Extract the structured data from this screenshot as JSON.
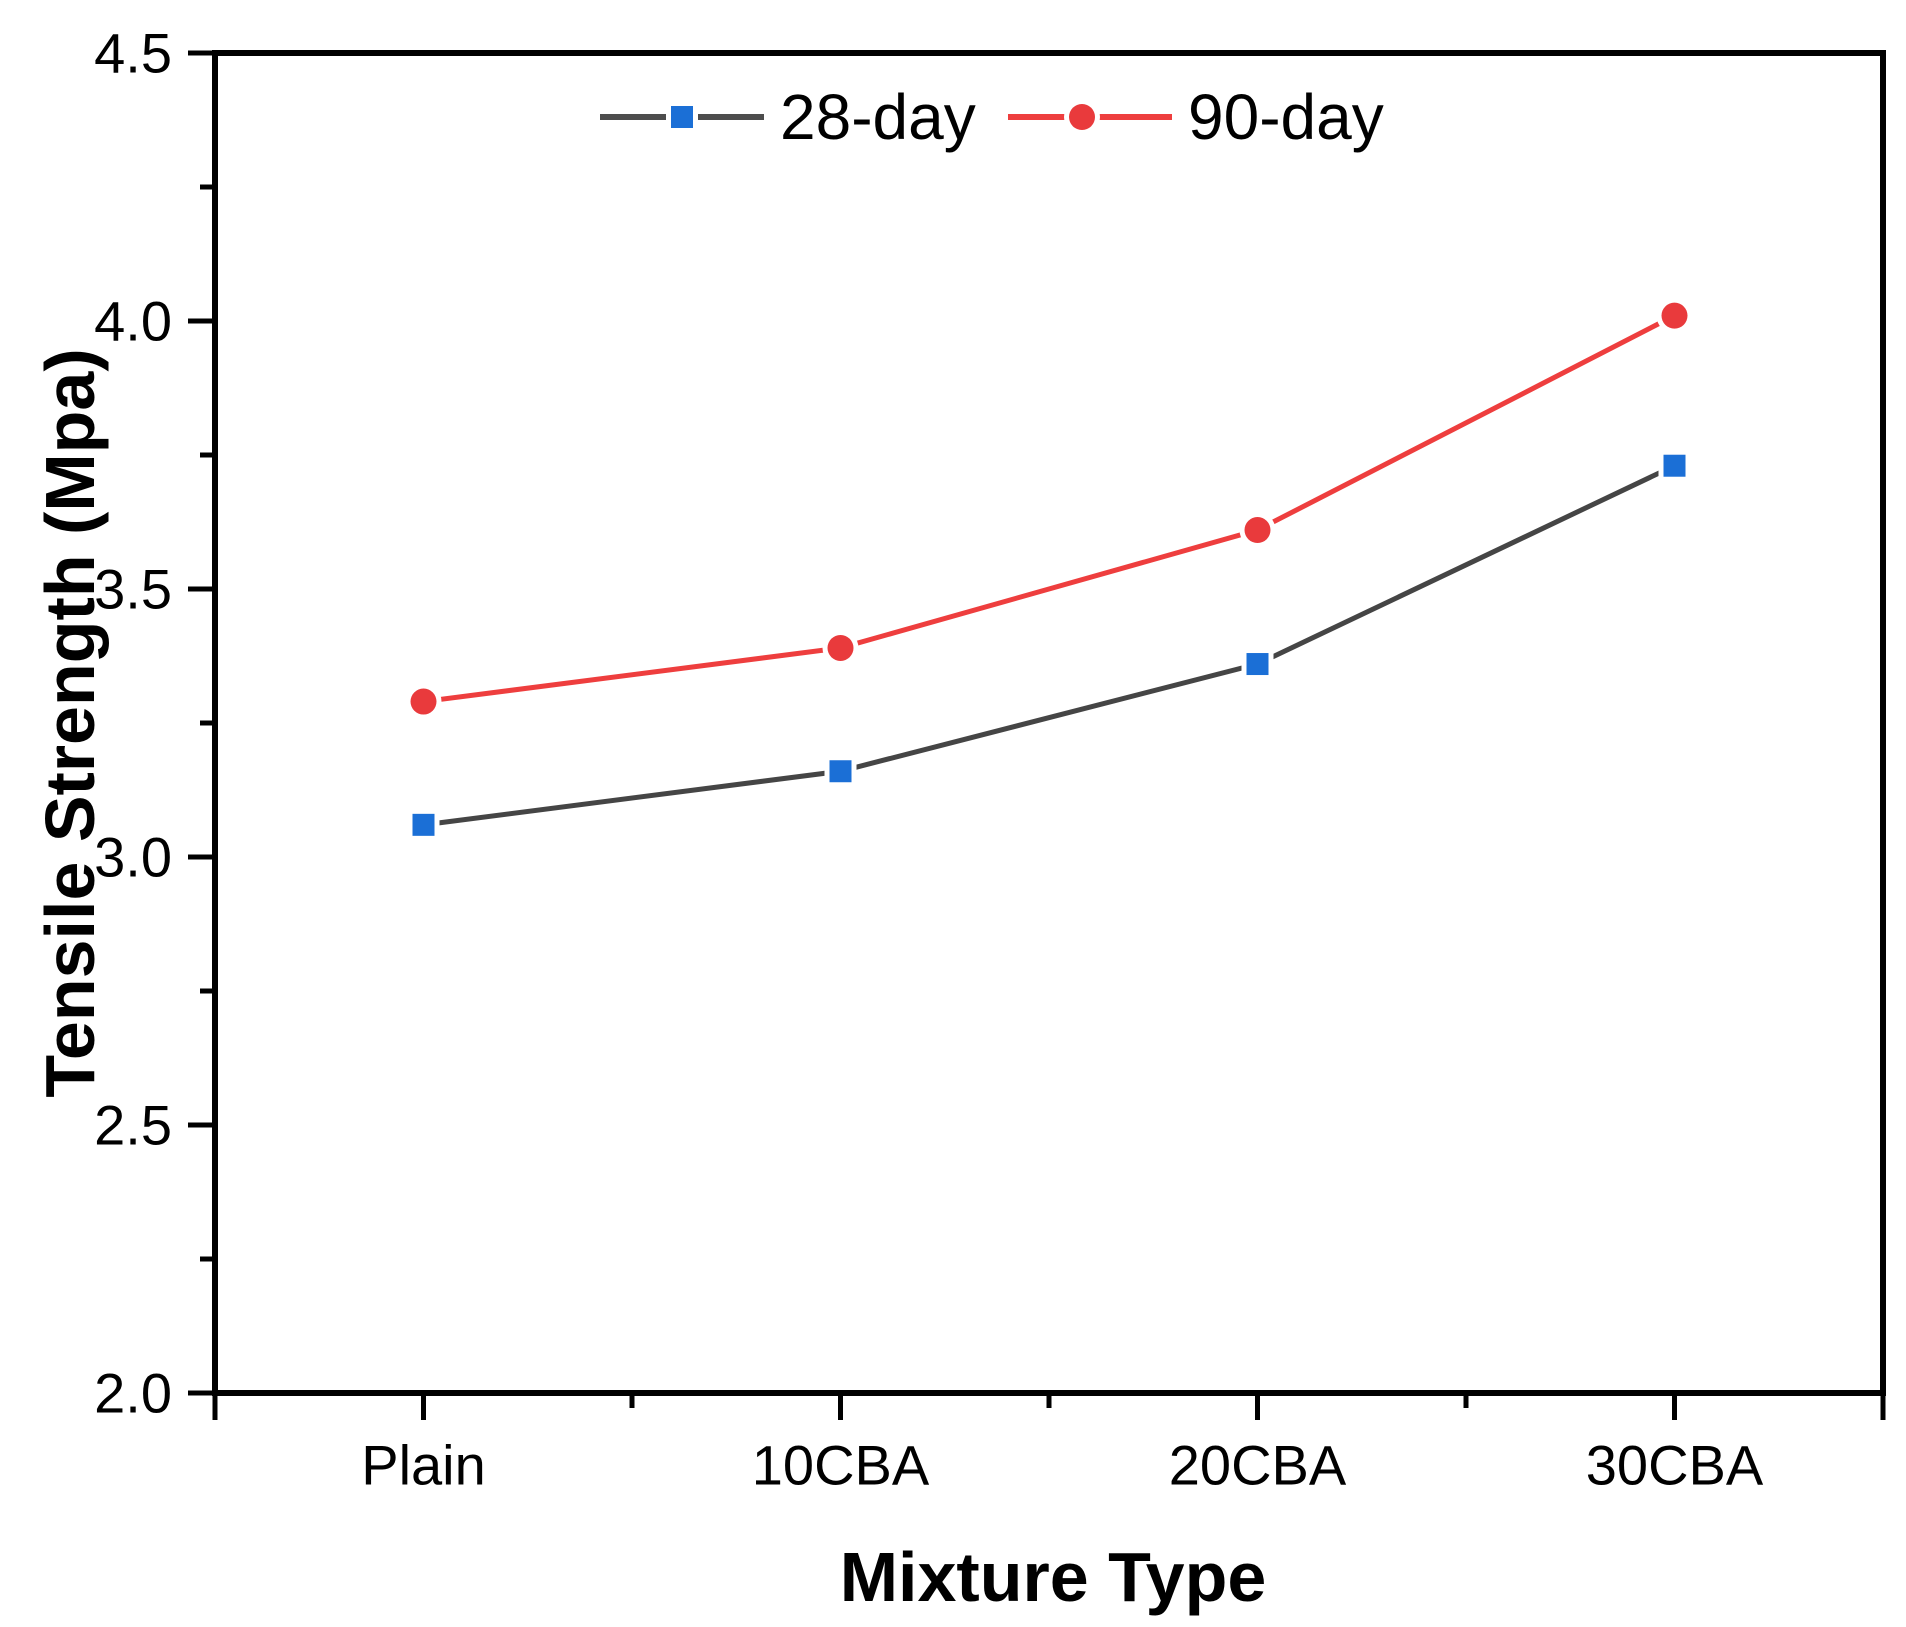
{
  "chart_data": {
    "type": "line",
    "categories": [
      "Plain",
      "10CBA",
      "20CBA",
      "30CBA"
    ],
    "series": [
      {
        "name": "28-day",
        "values": [
          3.06,
          3.16,
          3.36,
          3.73
        ],
        "line_color": "#454545",
        "marker_color": "#1B6FD6",
        "marker": "square"
      },
      {
        "name": "90-day",
        "values": [
          3.29,
          3.39,
          3.61,
          4.01
        ],
        "line_color": "#EE3E3E",
        "marker_color": "#E93A3C",
        "marker": "circle"
      }
    ],
    "title": "",
    "xlabel": "Mixture Type",
    "ylabel": "Tensile Strength (Mpa)",
    "ylim": [
      2.0,
      4.5
    ],
    "yticks": [
      2.0,
      2.5,
      3.0,
      3.5,
      4.0,
      4.5
    ],
    "y_minor_step": 0.25,
    "x_minor_ticks": "between-categories",
    "grid": false,
    "legend_position": "top-center",
    "axis_color": "#000000",
    "background_color": "#ffffff"
  }
}
